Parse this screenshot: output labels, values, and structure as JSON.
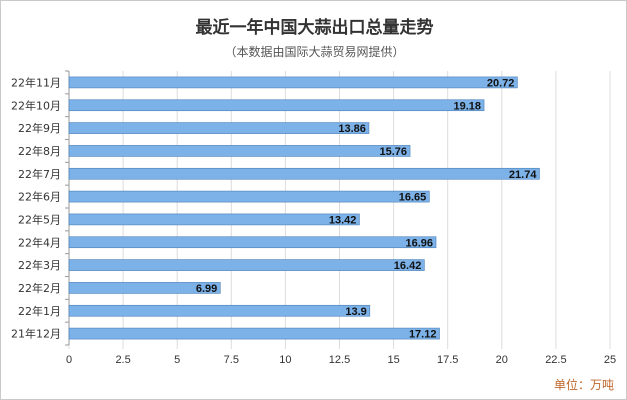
{
  "chart_data": {
    "type": "bar",
    "orientation": "horizontal",
    "title": "最近一年中国大蒜出口总量走势",
    "subtitle": "（本数据由国际大蒜贸易网提供）",
    "unit_label": "单位：万吨",
    "categories": [
      "22年11月",
      "22年10月",
      "22年9月",
      "22年8月",
      "22年7月",
      "22年6月",
      "22年5月",
      "22年4月",
      "22年3月",
      "22年2月",
      "22年1月",
      "21年12月"
    ],
    "values": [
      20.72,
      19.18,
      13.86,
      15.76,
      21.74,
      16.65,
      13.42,
      16.96,
      16.42,
      6.99,
      13.9,
      17.12
    ],
    "value_labels": [
      "20.72",
      "19.18",
      "13.86",
      "15.76",
      "21.74",
      "16.65",
      "13.42",
      "16.96",
      "16.42",
      "6.99",
      "13.9",
      "17.12"
    ],
    "xlim": [
      0,
      25
    ],
    "ticks": [
      "0",
      "2.5",
      "5",
      "7.5",
      "10",
      "12.5",
      "15",
      "17.5",
      "20",
      "22.5",
      "25"
    ],
    "grid": true,
    "bar_color": "#7cb2e8",
    "bar_border_color": "#4a7fb8"
  }
}
